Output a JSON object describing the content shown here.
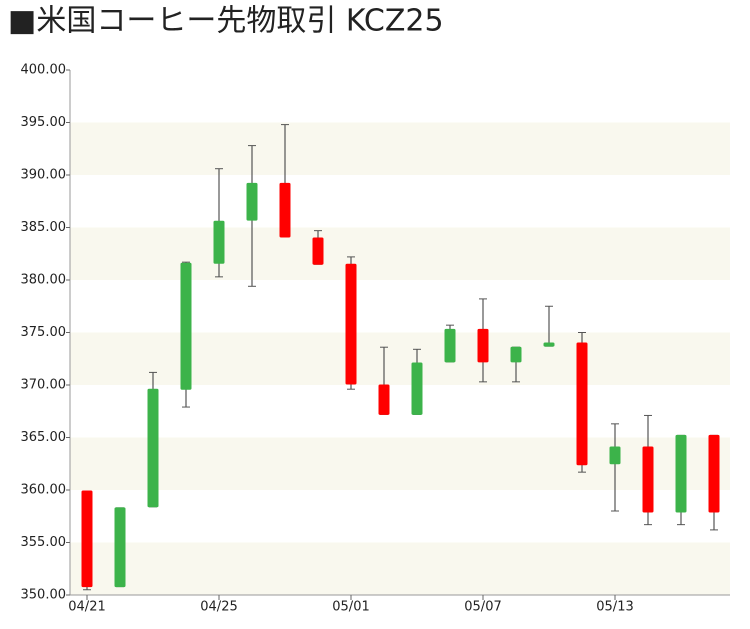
{
  "chart_data": {
    "type": "candlestick",
    "title": "■米国コーヒー先物取引 KCZ25",
    "categories": [
      "04/21",
      null,
      null,
      null,
      "04/25",
      null,
      null,
      null,
      "05/01",
      null,
      null,
      null,
      "05/07",
      null,
      null,
      null,
      "05/13",
      null,
      null,
      null
    ],
    "open": [
      359.9,
      350.8,
      358.4,
      369.6,
      381.6,
      385.7,
      389.2,
      384.0,
      381.5,
      370.0,
      367.2,
      372.2,
      375.3,
      372.2,
      373.7,
      374.0,
      362.5,
      364.1,
      357.9,
      365.2
    ],
    "high": [
      359.9,
      358.3,
      371.2,
      381.7,
      390.6,
      392.8,
      394.8,
      384.7,
      382.2,
      373.6,
      373.4,
      375.7,
      378.2,
      373.6,
      377.5,
      375.0,
      366.3,
      367.1,
      365.2,
      365.2
    ],
    "low": [
      350.5,
      350.8,
      358.4,
      367.9,
      380.3,
      379.4,
      384.1,
      381.5,
      369.6,
      367.2,
      367.2,
      372.2,
      370.3,
      370.3,
      373.7,
      361.7,
      358.0,
      356.7,
      356.7,
      356.2
    ],
    "close": [
      350.8,
      358.3,
      369.6,
      381.6,
      385.6,
      389.2,
      384.1,
      381.5,
      370.1,
      367.2,
      372.1,
      375.3,
      372.2,
      373.6,
      374.0,
      362.4,
      364.1,
      357.9,
      365.2,
      357.9
    ],
    "up_color": "#3cb34a",
    "down_color": "#ff0000",
    "band_color": "#f9f8ee",
    "ylim": [
      350,
      400
    ],
    "yticks": [
      {
        "value": 350,
        "label": "350.00"
      },
      {
        "value": 355,
        "label": "355.00"
      },
      {
        "value": 360,
        "label": "360.00"
      },
      {
        "value": 365,
        "label": "365.00"
      },
      {
        "value": 370,
        "label": "370.00"
      },
      {
        "value": 375,
        "label": "375.00"
      },
      {
        "value": 380,
        "label": "380.00"
      },
      {
        "value": 385,
        "label": "385.00"
      },
      {
        "value": 390,
        "label": "390.00"
      },
      {
        "value": 395,
        "label": "395.00"
      },
      {
        "value": 400,
        "label": "400.00"
      }
    ]
  }
}
